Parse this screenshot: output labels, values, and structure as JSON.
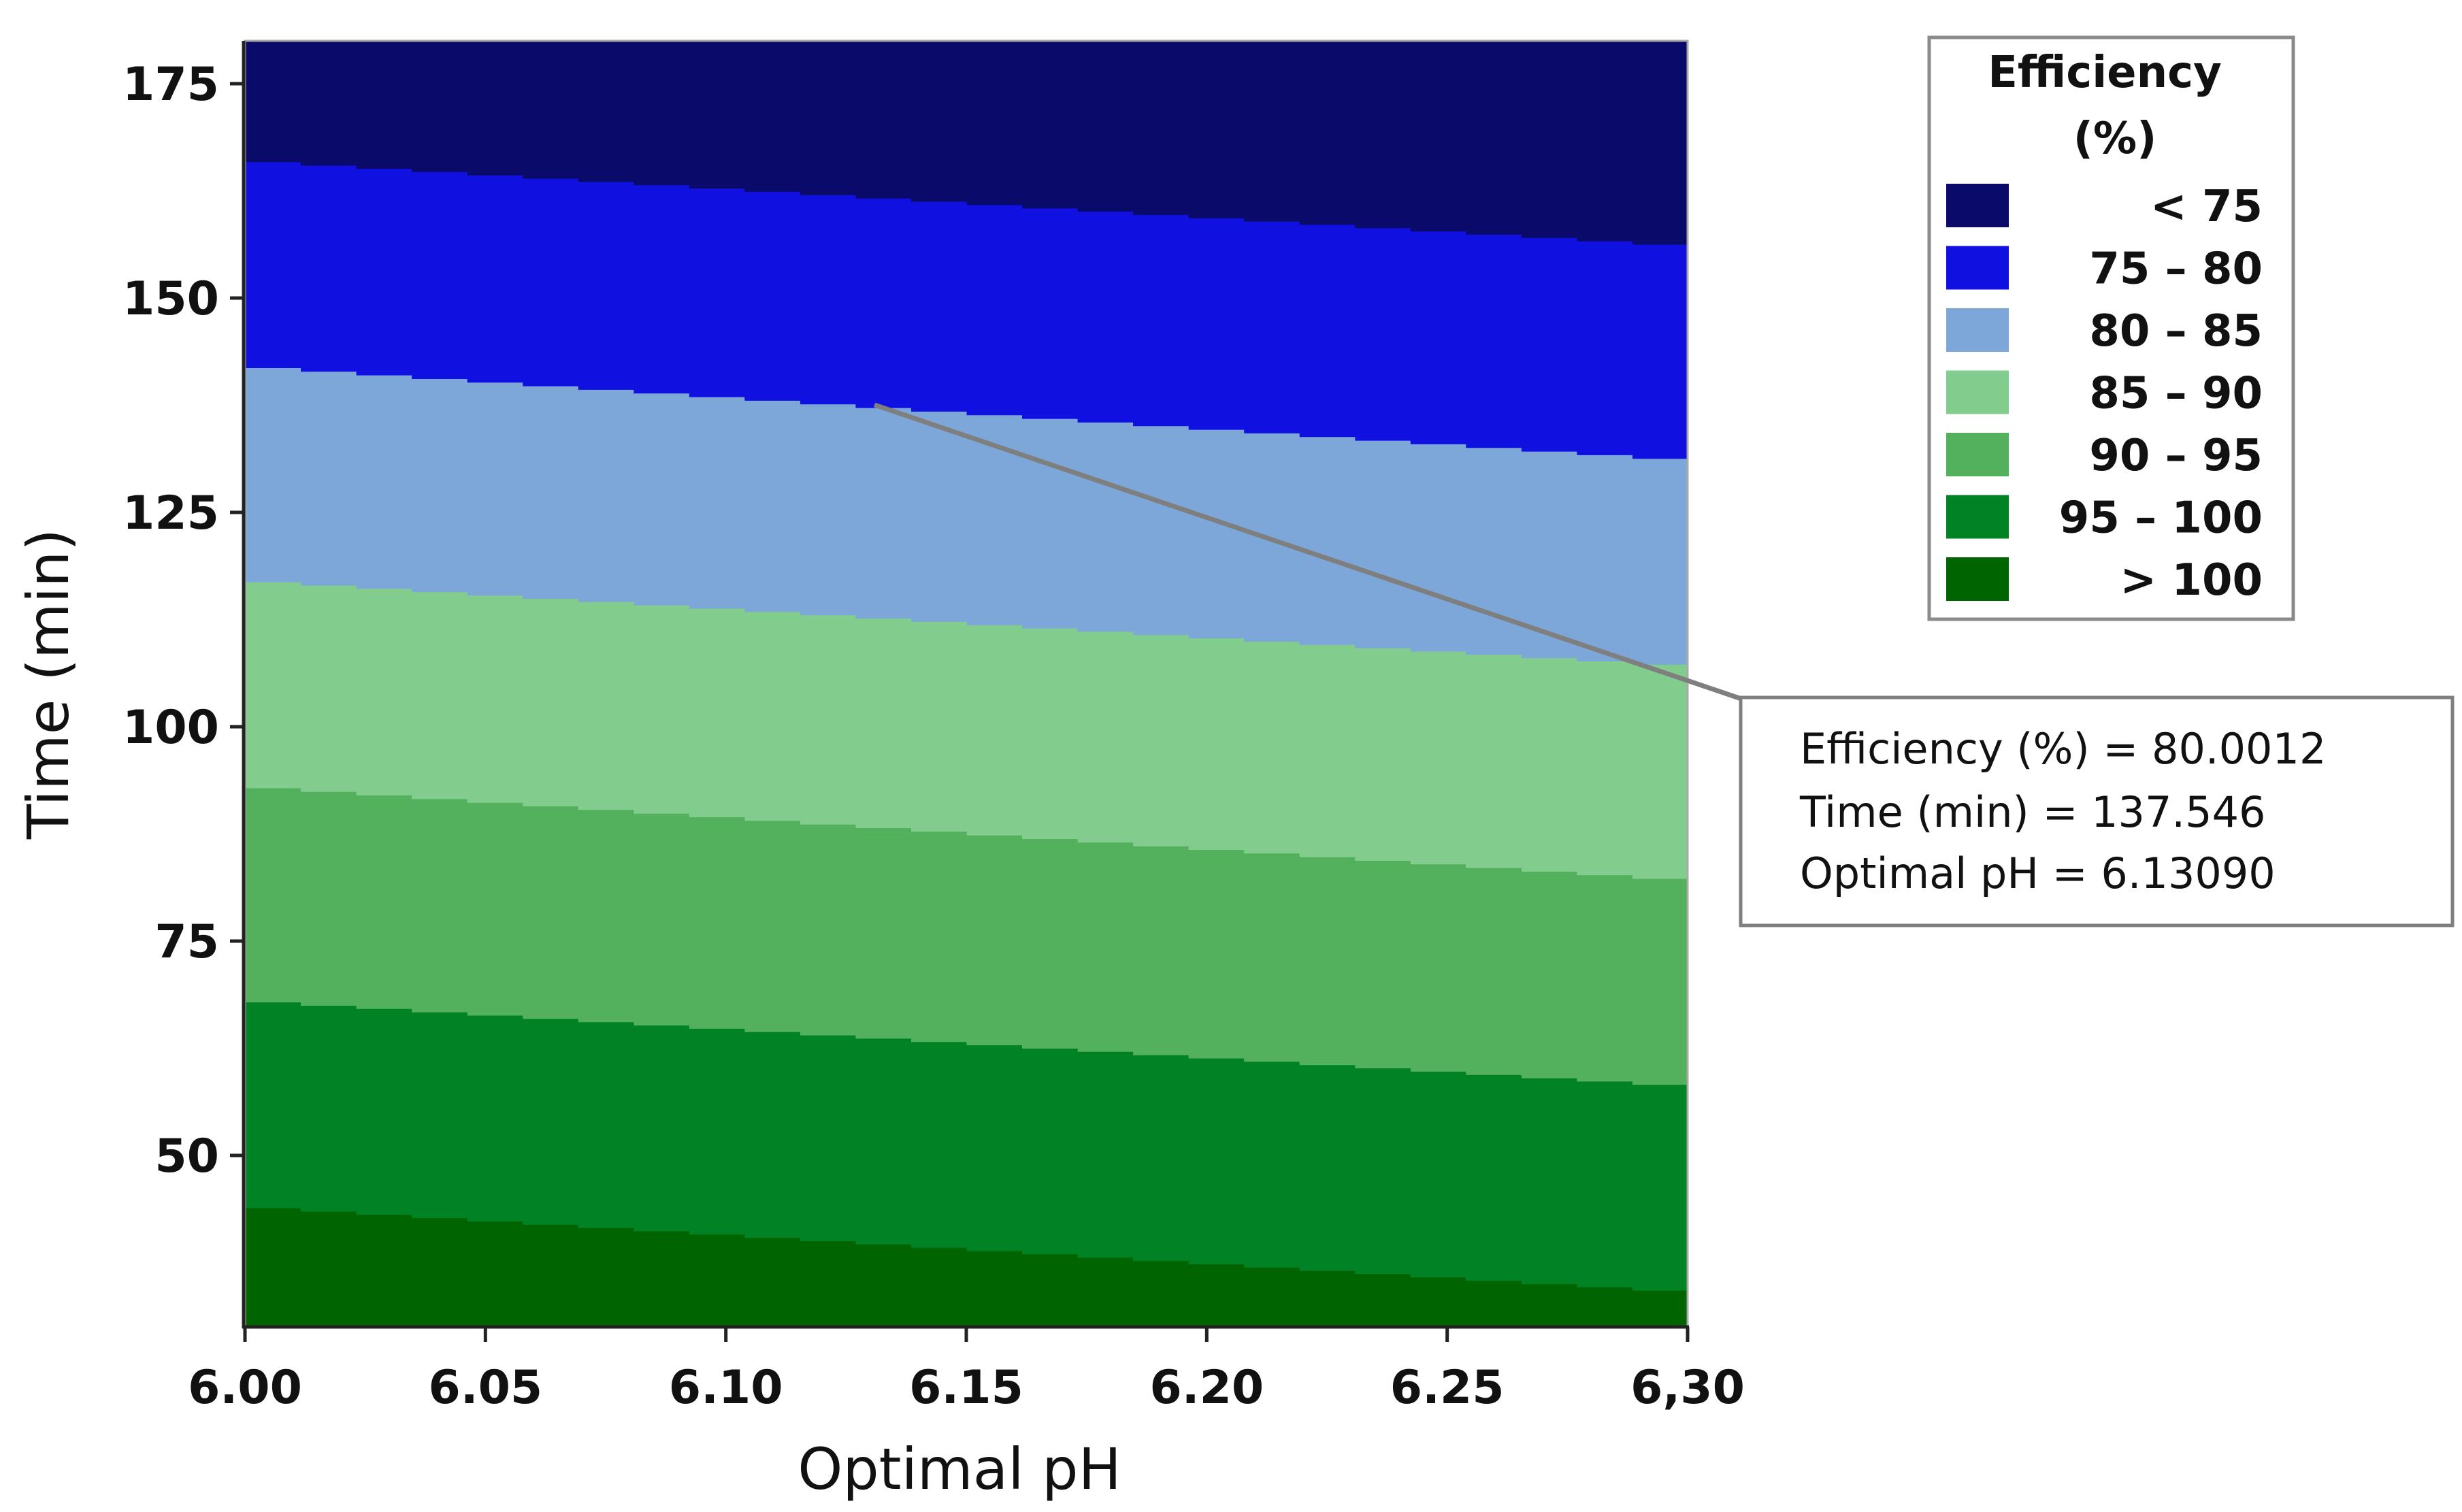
{
  "chart_data": {
    "type": "contour",
    "title": "",
    "xlabel": "Optimal pH",
    "ylabel": "Time (min)",
    "xlim": [
      6.0,
      6.3
    ],
    "ylim": [
      30,
      180
    ],
    "x_ticks": [
      {
        "value": 6.0,
        "label": "6.00"
      },
      {
        "value": 6.05,
        "label": "6.05"
      },
      {
        "value": 6.1,
        "label": "6.10"
      },
      {
        "value": 6.15,
        "label": "6.15"
      },
      {
        "value": 6.2,
        "label": "6.20"
      },
      {
        "value": 6.25,
        "label": "6.25"
      },
      {
        "value": 6.3,
        "label": "6,30"
      }
    ],
    "y_ticks": [
      {
        "value": 50,
        "label": "50"
      },
      {
        "value": 75,
        "label": "75"
      },
      {
        "value": 100,
        "label": "100"
      },
      {
        "value": 125,
        "label": "125"
      },
      {
        "value": 150,
        "label": "150"
      },
      {
        "value": 175,
        "label": "175"
      }
    ],
    "boundaries": [
      {
        "level": 75,
        "time_at_ph_6_00": 166,
        "time_at_ph_6_30": 156
      },
      {
        "level": 80,
        "time_at_ph_6_00": 142,
        "time_at_ph_6_30": 131
      },
      {
        "level": 85,
        "time_at_ph_6_00": 117,
        "time_at_ph_6_30": 107
      },
      {
        "level": 90,
        "time_at_ph_6_00": 93,
        "time_at_ph_6_30": 82
      },
      {
        "level": 95,
        "time_at_ph_6_00": 68,
        "time_at_ph_6_30": 58
      },
      {
        "level": 100,
        "time_at_ph_6_00": 44,
        "time_at_ph_6_30": 34
      }
    ],
    "legend": {
      "title_line1": "Efficiency",
      "title_line2": "(%)",
      "placement": "top-right",
      "items": [
        {
          "label": "< 75",
          "color": "#0a0a6b"
        },
        {
          "label": "75 – 80",
          "color": "#1010e0"
        },
        {
          "label": "80 – 85",
          "color": "#7da7d9"
        },
        {
          "label": "85 – 90",
          "color": "#82cd8e"
        },
        {
          "label": "90 – 95",
          "color": "#53b05c"
        },
        {
          "label": "95 – 100",
          "color": "#008225"
        },
        {
          "label": "> 100",
          "color": "#006400"
        }
      ]
    },
    "annotation": {
      "point": {
        "x": 6.1309,
        "y": 137.546
      },
      "lines": [
        "Efficiency (%) = 80.0012",
        "Time (min) = 137.546",
        "Optimal pH = 6.13090"
      ]
    }
  }
}
